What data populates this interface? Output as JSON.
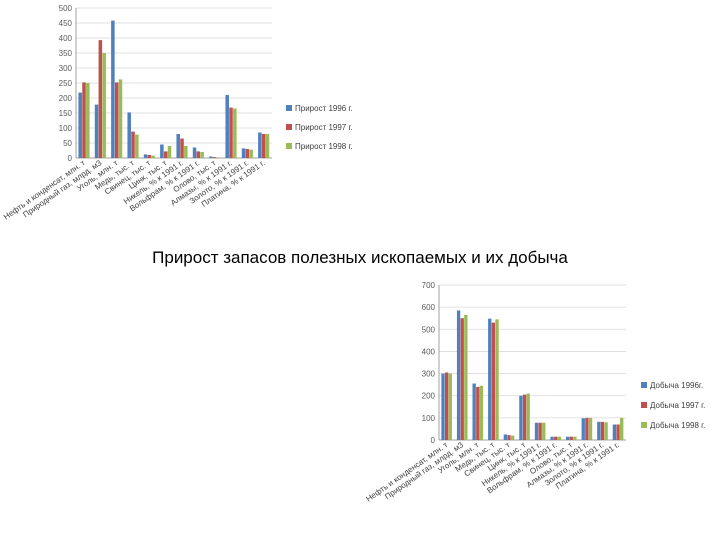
{
  "page_title": "Прирост запасов полезных ископаемых и их добыча",
  "chart_data": [
    {
      "type": "bar",
      "categories": [
        "Нефть и конденсат, млн. т",
        "Природный газ, млрд. м3",
        "Уголь, млн. т",
        "Медь, тыс. т",
        "Свинец, тыс. т",
        "Цинк, тыс. т",
        "Никель, % к 1991 г.",
        "Вольфрам, % к 1991 г.",
        "Олово, тыс. т",
        "Алмазы, % к 1991 г.",
        "Золото, % к 1991 г.",
        "Платина, % к 1991 г."
      ],
      "series": [
        {
          "name": "Прирост 1996 г.",
          "color": "#4f81bd",
          "values": [
            218,
            178,
            458,
            152,
            12,
            45,
            80,
            35,
            5,
            210,
            32,
            85
          ]
        },
        {
          "name": "Прирост 1997 г.",
          "color": "#c0504d",
          "values": [
            252,
            393,
            252,
            88,
            10,
            22,
            65,
            22,
            3,
            168,
            30,
            80
          ]
        },
        {
          "name": "Прирост 1998 г.",
          "color": "#9bbb59",
          "values": [
            250,
            350,
            262,
            78,
            8,
            40,
            40,
            20,
            2,
            165,
            28,
            80
          ]
        }
      ],
      "ylim": [
        0,
        500
      ],
      "yticks": [
        0,
        50,
        100,
        150,
        200,
        250,
        300,
        350,
        400,
        450,
        500
      ],
      "grid": true,
      "legend": "right"
    },
    {
      "type": "bar",
      "categories": [
        "Нефть и конденсат, млн. т",
        "Природный газ, млрд. м3",
        "Уголь, млн. т",
        "Медь, тыс. т",
        "Свинец, тыс. т",
        "Цинк, тыс. т",
        "Никель, % к 1991 г.",
        "Вольфрам, % к 1991 г.",
        "Олово, тыс. т",
        "Алмазы, % к 1991 г.",
        "Золото, % к 1991 г.",
        "Платина, % к 1991 г."
      ],
      "series": [
        {
          "name": "Добыча 1996г.",
          "color": "#4f81bd",
          "values": [
            300,
            585,
            255,
            548,
            25,
            200,
            78,
            15,
            15,
            98,
            82,
            70
          ]
        },
        {
          "name": "Добыча 1997 г.",
          "color": "#c0504d",
          "values": [
            305,
            550,
            240,
            530,
            22,
            205,
            78,
            15,
            15,
            100,
            82,
            70
          ]
        },
        {
          "name": "Добыча 1998 г.",
          "color": "#9bbb59",
          "values": [
            300,
            565,
            245,
            545,
            20,
            210,
            78,
            15,
            15,
            100,
            80,
            100
          ]
        }
      ],
      "ylim": [
        0,
        700
      ],
      "yticks": [
        0,
        100,
        200,
        300,
        400,
        500,
        600,
        700
      ],
      "grid": true,
      "legend": "right"
    }
  ]
}
